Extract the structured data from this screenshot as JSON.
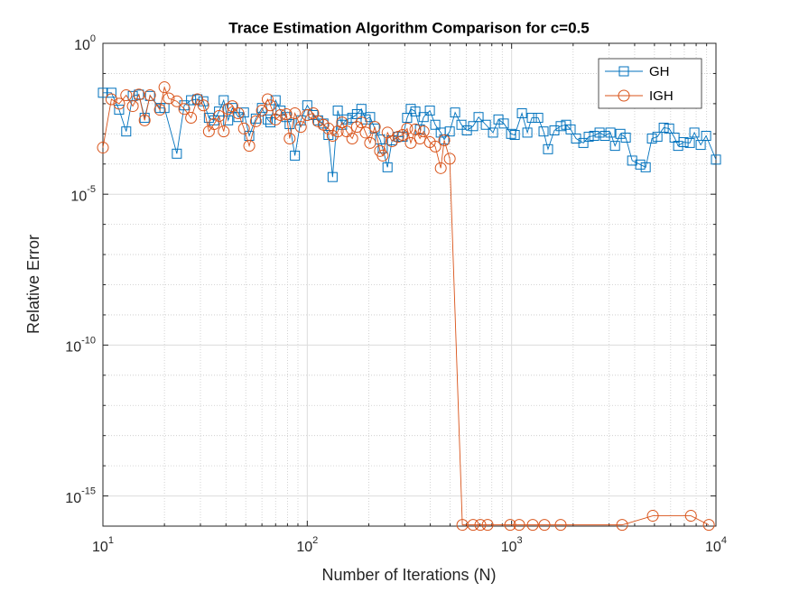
{
  "chart_data": {
    "type": "line",
    "title": "Trace Estimation Algorithm Comparison for c=0.5",
    "xlabel": "Number of Iterations (N)",
    "ylabel": "Relative Error",
    "xscale": "log",
    "yscale": "log",
    "xlim": [
      10,
      10000
    ],
    "ylim": [
      1e-16,
      1
    ],
    "xticks": [
      {
        "value": 10,
        "label": "10",
        "exponent": "1"
      },
      {
        "value": 100,
        "label": "10",
        "exponent": "2"
      },
      {
        "value": 1000,
        "label": "10",
        "exponent": "3"
      },
      {
        "value": 10000,
        "label": "10",
        "exponent": "4"
      }
    ],
    "yticks": [
      {
        "value": 1e-15,
        "label": "10",
        "exponent": "-15"
      },
      {
        "value": 1e-10,
        "label": "10",
        "exponent": "-10"
      },
      {
        "value": 1e-05,
        "label": "10",
        "exponent": "-5"
      },
      {
        "value": 1,
        "label": "10",
        "exponent": "0"
      }
    ],
    "xminorticks": [
      20,
      30,
      40,
      50,
      60,
      70,
      80,
      90,
      200,
      300,
      400,
      500,
      600,
      700,
      800,
      900,
      2000,
      3000,
      4000,
      5000,
      6000,
      7000,
      8000,
      9000
    ],
    "yminorticks": [
      1e-14,
      1e-13,
      1e-12,
      1e-11,
      1e-09,
      1e-08,
      1e-07,
      1e-06,
      0.0001,
      0.001,
      0.01,
      0.1
    ],
    "grid": true,
    "minor_grid": true,
    "legend": "northeast",
    "series": [
      {
        "name": "GH",
        "color": "#0072BD",
        "marker": "square",
        "x": [
          10,
          11,
          12,
          13,
          14,
          15,
          16,
          17,
          19,
          20,
          23,
          25,
          27,
          29,
          31,
          33,
          35,
          37,
          39,
          41,
          43,
          46,
          49,
          52,
          56,
          60,
          64,
          66,
          70,
          74,
          79,
          82,
          87,
          93,
          100,
          107,
          113,
          120,
          127,
          133,
          141,
          148,
          156,
          166,
          175,
          184,
          193,
          203,
          214,
          227,
          234,
          247,
          260,
          279,
          293,
          308,
          321,
          338,
          356,
          371,
          398,
          423,
          450,
          468,
          498,
          529,
          568,
          604,
          648,
          689,
          748,
          811,
          862,
          916,
          994,
          1036,
          1123,
          1194,
          1256,
          1349,
          1433,
          1507,
          1619,
          1738,
          1848,
          1944,
          2067,
          2244,
          2384,
          2535,
          2694,
          2863,
          3044,
          3206,
          3406,
          3620,
          3890,
          4260,
          4530,
          4860,
          5170,
          5550,
          5900,
          6270,
          6530,
          6940,
          7450,
          7840,
          8420,
          8950,
          10000
        ],
        "values": [
          0.023,
          0.023,
          0.0063,
          0.0012,
          0.018,
          0.02,
          0.0034,
          0.018,
          0.0072,
          0.0072,
          0.00022,
          0.0088,
          0.013,
          0.014,
          0.012,
          0.0034,
          0.0028,
          0.0055,
          0.013,
          0.0028,
          0.0072,
          0.0036,
          0.0051,
          0.00086,
          0.0032,
          0.0072,
          0.003,
          0.0024,
          0.013,
          0.0059,
          0.0036,
          0.0021,
          0.00019,
          0.0028,
          0.0088,
          0.0042,
          0.0028,
          0.0022,
          0.00092,
          3.7e-05,
          0.0059,
          0.002,
          0.003,
          0.0034,
          0.0045,
          0.0067,
          0.003,
          0.0036,
          0.0015,
          0.00065,
          0.00033,
          7.8e-05,
          0.00061,
          0.0008,
          0.0008,
          0.0034,
          0.0067,
          0.0055,
          0.0014,
          0.0036,
          0.0059,
          0.002,
          0.0011,
          0.00065,
          0.0012,
          0.0051,
          0.002,
          0.0013,
          0.0018,
          0.0036,
          0.002,
          0.0011,
          0.003,
          0.0022,
          0.001,
          0.00092,
          0.0048,
          0.0011,
          0.0034,
          0.0034,
          0.0012,
          0.00031,
          0.0013,
          0.0018,
          0.002,
          0.0014,
          0.0007,
          0.0005,
          0.0008,
          0.00086,
          0.0011,
          0.00086,
          0.0011,
          0.0004,
          0.001,
          0.00075,
          0.00013,
          9.6e-05,
          7.8e-05,
          0.0007,
          0.0008,
          0.0016,
          0.0015,
          0.00075,
          0.0004,
          0.00053,
          0.0005,
          0.0011,
          0.00043,
          0.00086,
          0.00014
        ]
      },
      {
        "name": "IGH",
        "color": "#D95319",
        "marker": "circle",
        "x": [
          10,
          11,
          12,
          13,
          14,
          15,
          16,
          17,
          19,
          20,
          21,
          23,
          25,
          27,
          29,
          31,
          33,
          35,
          37,
          39,
          41,
          43,
          46,
          49,
          52,
          56,
          60,
          64,
          66,
          70,
          74,
          79,
          82,
          87,
          93,
          100,
          107,
          113,
          120,
          127,
          133,
          141,
          148,
          156,
          166,
          175,
          184,
          193,
          203,
          214,
          227,
          234,
          247,
          260,
          279,
          293,
          308,
          321,
          338,
          356,
          371,
          398,
          423,
          450,
          468,
          498,
          574,
          648,
          703,
          763,
          984,
          1089,
          1269,
          1448,
          1738,
          3475,
          4910,
          7540,
          9230
        ],
        "values": [
          0.00035,
          0.014,
          0.01,
          0.019,
          0.0083,
          0.02,
          0.0028,
          0.019,
          0.0063,
          0.035,
          0.015,
          0.012,
          0.0067,
          0.0034,
          0.014,
          0.0088,
          0.0012,
          0.0021,
          0.0039,
          0.0012,
          0.0067,
          0.0083,
          0.0048,
          0.0015,
          0.0004,
          0.0026,
          0.0059,
          0.014,
          0.0088,
          0.003,
          0.0042,
          0.0045,
          0.0007,
          0.0048,
          0.0017,
          0.0042,
          0.0048,
          0.0026,
          0.002,
          0.0015,
          0.00086,
          0.0012,
          0.0024,
          0.0012,
          0.0007,
          0.0017,
          0.0024,
          0.0011,
          0.0005,
          0.0017,
          0.00027,
          0.00019,
          0.0011,
          0.00057,
          0.0008,
          0.00092,
          0.0015,
          0.0005,
          0.0014,
          0.0007,
          0.0012,
          0.00053,
          0.00038,
          7.3e-05,
          0.00061,
          0.00015,
          1.1e-16,
          1.1e-16,
          1.1e-16,
          1.1e-16,
          1.1e-16,
          1.1e-16,
          1.1e-16,
          1.1e-16,
          1.1e-16,
          1.1e-16,
          2.2e-16,
          2.2e-16,
          1.1e-16
        ]
      }
    ]
  }
}
